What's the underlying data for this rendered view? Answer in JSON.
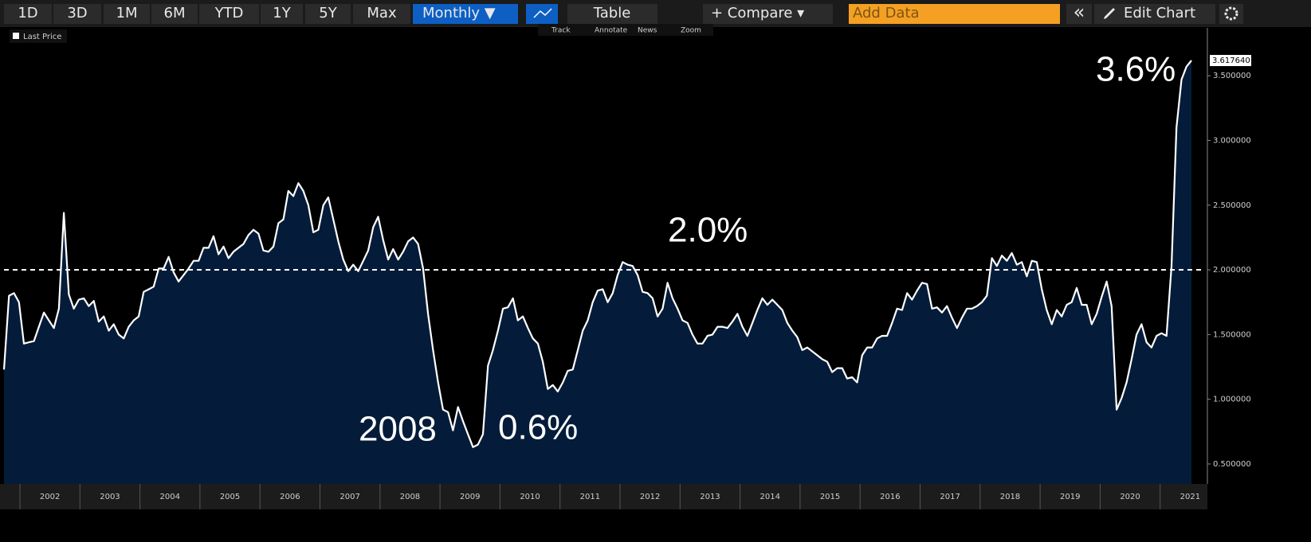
{
  "toolbar": {
    "buttons": [
      "1D",
      "3D",
      "1M",
      "6M",
      "YTD",
      "1Y",
      "5Y",
      "Max"
    ],
    "frequency": "Monthly ▼",
    "table": "Table",
    "compare": "+ Compare ▾",
    "add_data": "Add Data",
    "collapse": "«",
    "edit_chart": "Edit Chart",
    "tools": [
      "Track",
      "Annotate",
      "News",
      "Zoom"
    ]
  },
  "chart_data": {
    "type": "line",
    "series": [
      {
        "name": "Last Price",
        "color": "#ffffff",
        "fill": "#041c3a",
        "values": [
          1.23,
          1.8,
          1.82,
          1.75,
          1.43,
          1.44,
          1.45,
          1.56,
          1.67,
          1.61,
          1.55,
          1.7,
          2.44,
          1.81,
          1.7,
          1.77,
          1.78,
          1.72,
          1.76,
          1.6,
          1.64,
          1.53,
          1.58,
          1.5,
          1.47,
          1.56,
          1.61,
          1.64,
          1.83,
          1.85,
          1.87,
          2.01,
          2.01,
          2.1,
          1.98,
          1.91,
          1.96,
          2.01,
          2.07,
          2.07,
          2.17,
          2.17,
          2.26,
          2.12,
          2.18,
          2.09,
          2.14,
          2.17,
          2.2,
          2.27,
          2.31,
          2.28,
          2.15,
          2.14,
          2.18,
          2.36,
          2.39,
          2.61,
          2.57,
          2.67,
          2.61,
          2.5,
          2.29,
          2.31,
          2.5,
          2.56,
          2.39,
          2.22,
          2.08,
          1.99,
          2.04,
          1.99,
          2.07,
          2.15,
          2.33,
          2.41,
          2.23,
          2.08,
          2.16,
          2.08,
          2.14,
          2.22,
          2.25,
          2.2,
          2.01,
          1.66,
          1.38,
          1.13,
          0.92,
          0.9,
          0.76,
          0.94,
          0.83,
          0.73,
          0.63,
          0.65,
          0.73,
          1.26,
          1.38,
          1.53,
          1.7,
          1.71,
          1.78,
          1.61,
          1.64,
          1.55,
          1.47,
          1.43,
          1.29,
          1.08,
          1.11,
          1.06,
          1.13,
          1.22,
          1.23,
          1.38,
          1.53,
          1.61,
          1.75,
          1.84,
          1.85,
          1.75,
          1.82,
          1.96,
          2.06,
          2.04,
          2.03,
          1.96,
          1.83,
          1.82,
          1.78,
          1.64,
          1.7,
          1.9,
          1.78,
          1.7,
          1.61,
          1.59,
          1.5,
          1.43,
          1.43,
          1.49,
          1.5,
          1.56,
          1.56,
          1.55,
          1.6,
          1.66,
          1.56,
          1.49,
          1.59,
          1.69,
          1.78,
          1.73,
          1.77,
          1.73,
          1.69,
          1.59,
          1.53,
          1.48,
          1.38,
          1.4,
          1.37,
          1.34,
          1.31,
          1.29,
          1.21,
          1.24,
          1.24,
          1.16,
          1.17,
          1.13,
          1.34,
          1.4,
          1.4,
          1.47,
          1.49,
          1.49,
          1.59,
          1.7,
          1.69,
          1.82,
          1.77,
          1.84,
          1.9,
          1.89,
          1.7,
          1.71,
          1.67,
          1.72,
          1.63,
          1.55,
          1.63,
          1.7,
          1.7,
          1.72,
          1.75,
          1.8,
          2.09,
          2.03,
          2.11,
          2.07,
          2.13,
          2.04,
          2.06,
          1.95,
          2.07,
          2.06,
          1.85,
          1.69,
          1.58,
          1.69,
          1.64,
          1.73,
          1.75,
          1.86,
          1.73,
          1.73,
          1.58,
          1.66,
          1.79,
          1.91,
          1.72,
          0.92,
          1.01,
          1.13,
          1.31,
          1.5,
          1.58,
          1.44,
          1.4,
          1.49,
          1.51,
          1.49,
          2.03,
          3.1,
          3.47,
          3.57,
          3.61764
        ]
      }
    ],
    "last_price": {
      "value": 3.61764,
      "label": "3.617640"
    },
    "ylim": [
      0.346,
      3.87
    ],
    "yticks": [
      {
        "value": 0.5,
        "label": "0.500000"
      },
      {
        "value": 1.0,
        "label": "1.000000"
      },
      {
        "value": 1.5,
        "label": "1.500000"
      },
      {
        "value": 2.0,
        "label": "2.000000"
      },
      {
        "value": 2.5,
        "label": "2.500000"
      },
      {
        "value": 3.0,
        "label": "3.000000"
      },
      {
        "value": 3.5,
        "label": "3.500000"
      }
    ],
    "xticks": [
      2002,
      2003,
      2004,
      2005,
      2006,
      2007,
      2008,
      2009,
      2010,
      2011,
      2012,
      2013,
      2014,
      2015,
      2016,
      2017,
      2018,
      2019,
      2020,
      2021
    ],
    "reference_line": 2.0,
    "annotations": [
      "3.6%",
      "2.0%",
      "2008",
      "0.6%"
    ]
  }
}
